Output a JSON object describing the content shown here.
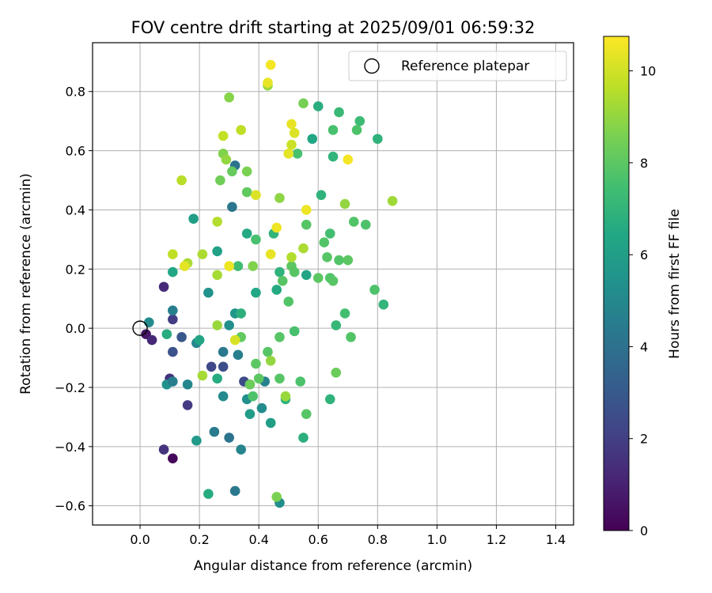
{
  "chart_data": {
    "type": "scatter",
    "title": "FOV centre drift starting at 2025/09/01 06:59:32",
    "xlabel": "Angular distance from reference (arcmin)",
    "ylabel": "Rotation from reference (arcmin)",
    "xlim": [
      -0.16,
      1.46
    ],
    "ylim": [
      -0.665,
      0.965
    ],
    "x_ticks": [
      0.0,
      0.2,
      0.4,
      0.6,
      0.8,
      1.0,
      1.2,
      1.4
    ],
    "x_tick_labels": [
      "0.0",
      "0.2",
      "0.4",
      "0.6",
      "0.8",
      "1.0",
      "1.2",
      "1.4"
    ],
    "y_ticks": [
      -0.6,
      -0.4,
      -0.2,
      0.0,
      0.2,
      0.4,
      0.6,
      0.8
    ],
    "y_tick_labels": [
      "−0.6",
      "−0.4",
      "−0.2",
      "0.0",
      "0.2",
      "0.4",
      "0.6",
      "0.8"
    ],
    "grid": true,
    "legend": {
      "placement": "top-right",
      "entries": [
        "Reference platepar"
      ]
    },
    "reference_point": {
      "x": 0.0,
      "y": 0.0
    },
    "colorbar": {
      "label": "Hours from first FF file",
      "colormap": "viridis",
      "range": [
        0,
        10.75
      ],
      "ticks": [
        0,
        2,
        4,
        6,
        8,
        10
      ],
      "tick_labels": [
        "0",
        "2",
        "4",
        "6",
        "8",
        "10"
      ]
    },
    "points": [
      {
        "x": 0.02,
        "y": -0.02,
        "c": 0.6
      },
      {
        "x": 0.04,
        "y": -0.04,
        "c": 1.2
      },
      {
        "x": 0.08,
        "y": 0.14,
        "c": 1.3
      },
      {
        "x": 0.11,
        "y": 0.03,
        "c": 1.9
      },
      {
        "x": 0.1,
        "y": -0.17,
        "c": 1.5
      },
      {
        "x": 0.11,
        "y": -0.44,
        "c": 0.2
      },
      {
        "x": 0.08,
        "y": -0.41,
        "c": 1.6
      },
      {
        "x": 0.16,
        "y": -0.26,
        "c": 1.8
      },
      {
        "x": 0.11,
        "y": -0.08,
        "c": 2.7
      },
      {
        "x": 0.14,
        "y": -0.03,
        "c": 2.9
      },
      {
        "x": 0.24,
        "y": -0.13,
        "c": 2.3
      },
      {
        "x": 0.28,
        "y": -0.13,
        "c": 2.6
      },
      {
        "x": 0.35,
        "y": -0.18,
        "c": 2.4
      },
      {
        "x": 0.11,
        "y": 0.06,
        "c": 4.6
      },
      {
        "x": 0.03,
        "y": 0.02,
        "c": 5.1
      },
      {
        "x": 0.09,
        "y": -0.19,
        "c": 5.4
      },
      {
        "x": 0.11,
        "y": -0.18,
        "c": 4.5
      },
      {
        "x": 0.16,
        "y": -0.19,
        "c": 4.9
      },
      {
        "x": 0.19,
        "y": -0.05,
        "c": 5.0
      },
      {
        "x": 0.2,
        "y": -0.04,
        "c": 6.3
      },
      {
        "x": 0.09,
        "y": -0.02,
        "c": 6.6
      },
      {
        "x": 0.11,
        "y": 0.19,
        "c": 6.4
      },
      {
        "x": 0.18,
        "y": 0.37,
        "c": 6.0
      },
      {
        "x": 0.19,
        "y": -0.38,
        "c": 5.8
      },
      {
        "x": 0.23,
        "y": -0.56,
        "c": 6.6
      },
      {
        "x": 0.25,
        "y": -0.35,
        "c": 4.4
      },
      {
        "x": 0.28,
        "y": -0.08,
        "c": 4.3
      },
      {
        "x": 0.28,
        "y": -0.23,
        "c": 5.1
      },
      {
        "x": 0.3,
        "y": -0.37,
        "c": 4.1
      },
      {
        "x": 0.32,
        "y": -0.55,
        "c": 4.3
      },
      {
        "x": 0.34,
        "y": -0.41,
        "c": 4.8
      },
      {
        "x": 0.33,
        "y": -0.09,
        "c": 4.6
      },
      {
        "x": 0.31,
        "y": 0.41,
        "c": 4.2
      },
      {
        "x": 0.32,
        "y": 0.55,
        "c": 4.1
      },
      {
        "x": 0.3,
        "y": 0.01,
        "c": 5.3
      },
      {
        "x": 0.32,
        "y": 0.05,
        "c": 5.6
      },
      {
        "x": 0.23,
        "y": 0.12,
        "c": 5.4
      },
      {
        "x": 0.26,
        "y": 0.26,
        "c": 6.1
      },
      {
        "x": 0.36,
        "y": -0.24,
        "c": 5.3
      },
      {
        "x": 0.37,
        "y": -0.29,
        "c": 5.9
      },
      {
        "x": 0.37,
        "y": -0.19,
        "c": 6.0
      },
      {
        "x": 0.41,
        "y": -0.27,
        "c": 5.2
      },
      {
        "x": 0.42,
        "y": -0.18,
        "c": 4.7
      },
      {
        "x": 0.44,
        "y": -0.32,
        "c": 6.0
      },
      {
        "x": 0.47,
        "y": -0.59,
        "c": 5.2
      },
      {
        "x": 0.26,
        "y": -0.17,
        "c": 6.6
      },
      {
        "x": 0.34,
        "y": 0.05,
        "c": 6.8
      },
      {
        "x": 0.36,
        "y": 0.32,
        "c": 6.5
      },
      {
        "x": 0.39,
        "y": 0.12,
        "c": 6.4
      },
      {
        "x": 0.46,
        "y": 0.13,
        "c": 6.5
      },
      {
        "x": 0.47,
        "y": 0.19,
        "c": 6.9
      },
      {
        "x": 0.45,
        "y": 0.32,
        "c": 7.0
      },
      {
        "x": 0.49,
        "y": -0.24,
        "c": 6.9
      },
      {
        "x": 0.55,
        "y": -0.37,
        "c": 6.8
      },
      {
        "x": 0.56,
        "y": 0.18,
        "c": 6.3
      },
      {
        "x": 0.58,
        "y": 0.64,
        "c": 6.4
      },
      {
        "x": 0.6,
        "y": 0.75,
        "c": 6.7
      },
      {
        "x": 0.61,
        "y": 0.45,
        "c": 6.9
      },
      {
        "x": 0.64,
        "y": -0.24,
        "c": 6.9
      },
      {
        "x": 0.66,
        "y": 0.01,
        "c": 7.1
      },
      {
        "x": 0.67,
        "y": 0.73,
        "c": 7.2
      },
      {
        "x": 0.65,
        "y": 0.58,
        "c": 7.0
      },
      {
        "x": 0.74,
        "y": 0.7,
        "c": 7.3
      },
      {
        "x": 0.8,
        "y": 0.64,
        "c": 6.9
      },
      {
        "x": 0.82,
        "y": 0.08,
        "c": 7.0
      },
      {
        "x": 0.33,
        "y": 0.21,
        "c": 7.4
      },
      {
        "x": 0.39,
        "y": 0.3,
        "c": 7.6
      },
      {
        "x": 0.38,
        "y": -0.23,
        "c": 7.7
      },
      {
        "x": 0.4,
        "y": -0.17,
        "c": 8.0
      },
      {
        "x": 0.39,
        "y": -0.12,
        "c": 8.0
      },
      {
        "x": 0.43,
        "y": -0.08,
        "c": 7.9
      },
      {
        "x": 0.46,
        "y": -0.57,
        "c": 8.6
      },
      {
        "x": 0.47,
        "y": -0.17,
        "c": 7.9
      },
      {
        "x": 0.47,
        "y": -0.03,
        "c": 7.9
      },
      {
        "x": 0.48,
        "y": 0.16,
        "c": 7.9
      },
      {
        "x": 0.5,
        "y": 0.09,
        "c": 7.8
      },
      {
        "x": 0.51,
        "y": 0.21,
        "c": 8.0
      },
      {
        "x": 0.52,
        "y": -0.01,
        "c": 7.6
      },
      {
        "x": 0.54,
        "y": -0.18,
        "c": 7.7
      },
      {
        "x": 0.52,
        "y": 0.19,
        "c": 7.9
      },
      {
        "x": 0.53,
        "y": 0.59,
        "c": 7.6
      },
      {
        "x": 0.56,
        "y": -0.29,
        "c": 7.9
      },
      {
        "x": 0.56,
        "y": 0.35,
        "c": 7.9
      },
      {
        "x": 0.6,
        "y": 0.17,
        "c": 8.0
      },
      {
        "x": 0.62,
        "y": 0.29,
        "c": 7.8
      },
      {
        "x": 0.63,
        "y": 0.24,
        "c": 7.9
      },
      {
        "x": 0.64,
        "y": 0.32,
        "c": 7.5
      },
      {
        "x": 0.64,
        "y": 0.17,
        "c": 7.8
      },
      {
        "x": 0.65,
        "y": 0.16,
        "c": 7.9
      },
      {
        "x": 0.65,
        "y": 0.67,
        "c": 7.6
      },
      {
        "x": 0.67,
        "y": 0.23,
        "c": 7.8
      },
      {
        "x": 0.69,
        "y": 0.05,
        "c": 7.5
      },
      {
        "x": 0.7,
        "y": 0.23,
        "c": 8.0
      },
      {
        "x": 0.71,
        "y": -0.03,
        "c": 7.8
      },
      {
        "x": 0.72,
        "y": 0.36,
        "c": 7.8
      },
      {
        "x": 0.73,
        "y": 0.67,
        "c": 7.7
      },
      {
        "x": 0.76,
        "y": 0.35,
        "c": 7.7
      },
      {
        "x": 0.79,
        "y": 0.13,
        "c": 7.7
      },
      {
        "x": 0.66,
        "y": -0.15,
        "c": 8.3
      },
      {
        "x": 0.55,
        "y": 0.76,
        "c": 8.5
      },
      {
        "x": 0.3,
        "y": 0.78,
        "c": 8.8
      },
      {
        "x": 0.36,
        "y": 0.53,
        "c": 8.6
      },
      {
        "x": 0.31,
        "y": 0.53,
        "c": 8.2
      },
      {
        "x": 0.36,
        "y": 0.46,
        "c": 8.1
      },
      {
        "x": 0.37,
        "y": -0.19,
        "c": 8.3
      },
      {
        "x": 0.34,
        "y": -0.03,
        "c": 8.1
      },
      {
        "x": 0.38,
        "y": 0.21,
        "c": 8.7
      },
      {
        "x": 0.27,
        "y": 0.5,
        "c": 8.4
      },
      {
        "x": 0.28,
        "y": 0.59,
        "c": 8.7
      },
      {
        "x": 0.29,
        "y": 0.57,
        "c": 9.0
      },
      {
        "x": 0.43,
        "y": 0.82,
        "c": 9.1
      },
      {
        "x": 0.47,
        "y": 0.44,
        "c": 8.9
      },
      {
        "x": 0.49,
        "y": -0.23,
        "c": 9.1
      },
      {
        "x": 0.44,
        "y": -0.11,
        "c": 9.0
      },
      {
        "x": 0.51,
        "y": 0.24,
        "c": 9.5
      },
      {
        "x": 0.55,
        "y": 0.27,
        "c": 9.4
      },
      {
        "x": 0.69,
        "y": 0.42,
        "c": 9.0
      },
      {
        "x": 0.85,
        "y": 0.43,
        "c": 9.2
      },
      {
        "x": 0.26,
        "y": 0.18,
        "c": 9.3
      },
      {
        "x": 0.26,
        "y": 0.01,
        "c": 9.1
      },
      {
        "x": 0.26,
        "y": 0.36,
        "c": 9.5
      },
      {
        "x": 0.21,
        "y": -0.16,
        "c": 9.3
      },
      {
        "x": 0.14,
        "y": 0.5,
        "c": 9.6
      },
      {
        "x": 0.16,
        "y": 0.22,
        "c": 9.4
      },
      {
        "x": 0.11,
        "y": 0.25,
        "c": 9.7
      },
      {
        "x": 0.21,
        "y": 0.25,
        "c": 9.4
      },
      {
        "x": 0.28,
        "y": 0.65,
        "c": 9.8
      },
      {
        "x": 0.34,
        "y": 0.67,
        "c": 9.7
      },
      {
        "x": 0.32,
        "y": -0.04,
        "c": 10.1
      },
      {
        "x": 0.3,
        "y": 0.21,
        "c": 10.5
      },
      {
        "x": 0.15,
        "y": 0.21,
        "c": 10.3
      },
      {
        "x": 0.39,
        "y": 0.45,
        "c": 10.2
      },
      {
        "x": 0.43,
        "y": 0.83,
        "c": 10.4
      },
      {
        "x": 0.44,
        "y": 0.89,
        "c": 10.6
      },
      {
        "x": 0.44,
        "y": 0.25,
        "c": 10.4
      },
      {
        "x": 0.46,
        "y": 0.34,
        "c": 10.5
      },
      {
        "x": 0.51,
        "y": 0.69,
        "c": 10.4
      },
      {
        "x": 0.52,
        "y": 0.66,
        "c": 10.2
      },
      {
        "x": 0.51,
        "y": 0.62,
        "c": 9.9
      },
      {
        "x": 0.5,
        "y": 0.59,
        "c": 10.3
      },
      {
        "x": 0.56,
        "y": 0.4,
        "c": 10.5
      },
      {
        "x": 0.7,
        "y": 0.57,
        "c": 10.6
      }
    ]
  }
}
